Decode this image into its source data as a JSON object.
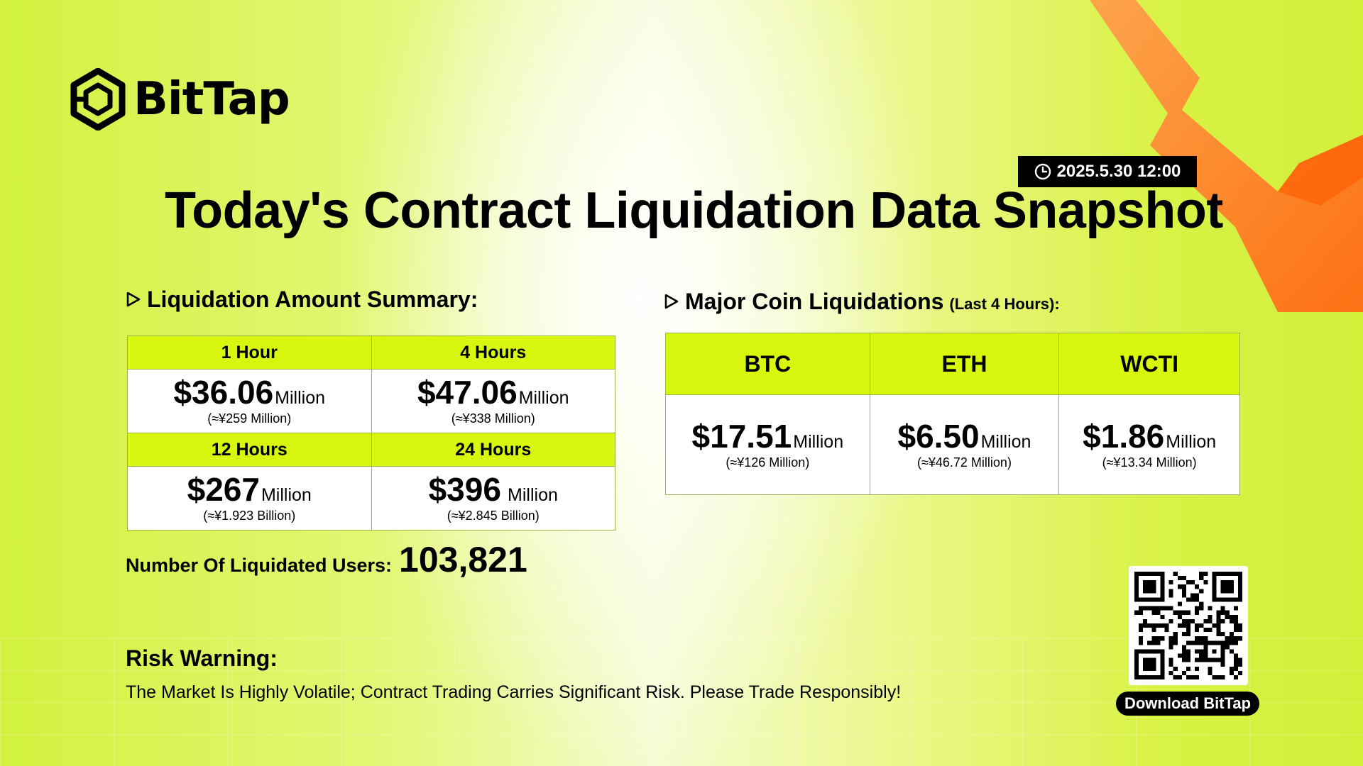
{
  "brand": {
    "name": "BitTap",
    "logo_icon": "hexagon-logo-icon"
  },
  "timestamp": {
    "icon": "clock-icon",
    "text": "2025.5.30 12:00"
  },
  "title": "Today's Contract Liquidation Data Snapshot",
  "summary": {
    "heading": "Liquidation Amount Summary:",
    "cells": [
      {
        "label": "1 Hour",
        "amount": "$36.06",
        "unit": "Million",
        "approx": "(≈¥259 Million)"
      },
      {
        "label": "4 Hours",
        "amount": "$47.06",
        "unit": "Million",
        "approx": "(≈¥338 Million)"
      },
      {
        "label": "12 Hours",
        "amount": "$267",
        "unit": "Million",
        "approx": "(≈¥1.923 Billion)"
      },
      {
        "label": "24 Hours",
        "amount": "$396",
        "unit": "Million",
        "approx": "(≈¥2.845 Billion)"
      }
    ]
  },
  "major_coins": {
    "heading": "Major Coin Liquidations",
    "subheading": "(Last 4 Hours):",
    "coins": [
      {
        "name": "BTC",
        "amount": "$17.51",
        "unit": "Million",
        "approx": "(≈¥126 Million)"
      },
      {
        "name": "ETH",
        "amount": "$6.50",
        "unit": "Million",
        "approx": "(≈¥46.72 Million)"
      },
      {
        "name": "WCTI",
        "amount": "$1.86",
        "unit": "Million",
        "approx": "(≈¥13.34 Million)"
      }
    ]
  },
  "users": {
    "label": "Number Of Liquidated Users:",
    "value": "103,821"
  },
  "risk": {
    "title": "Risk Warning:",
    "text": "The Market Is Highly Volatile; Contract Trading Carries Significant Risk. Please Trade Responsibly!"
  },
  "download": {
    "label": "Download BitTap",
    "qr_icon": "qr-code-icon"
  },
  "colors": {
    "accent": "#d7f70e",
    "arrow": "#ff7a1a",
    "text": "#000000"
  }
}
